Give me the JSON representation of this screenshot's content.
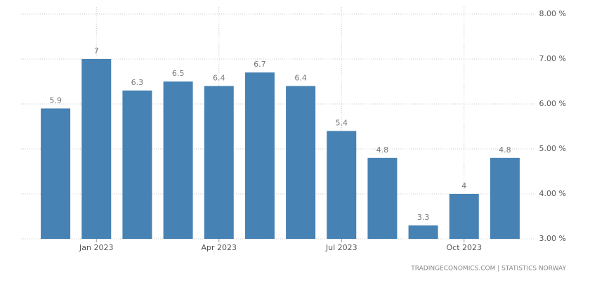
{
  "chart_data": {
    "type": "bar",
    "categories": [
      null,
      "Jan 2023",
      null,
      null,
      "Apr 2023",
      null,
      null,
      "Jul 2023",
      null,
      null,
      "Oct 2023",
      null
    ],
    "values": [
      5.9,
      7,
      6.3,
      6.5,
      6.4,
      6.7,
      6.4,
      5.4,
      4.8,
      3.3,
      4,
      4.8
    ],
    "color": "#4682b4",
    "ylim": [
      3,
      8
    ],
    "yticks": [
      {
        "value": 3,
        "label": "3.00 %"
      },
      {
        "value": 4,
        "label": "4.00 %"
      },
      {
        "value": 5,
        "label": "5.00 %"
      },
      {
        "value": 6,
        "label": "6.00 %"
      },
      {
        "value": 7,
        "label": "7.00 %"
      },
      {
        "value": 8,
        "label": "8.00 %"
      }
    ],
    "grid": true,
    "source": "TRADINGECONOMICS.COM | STATISTICS NORWAY"
  }
}
